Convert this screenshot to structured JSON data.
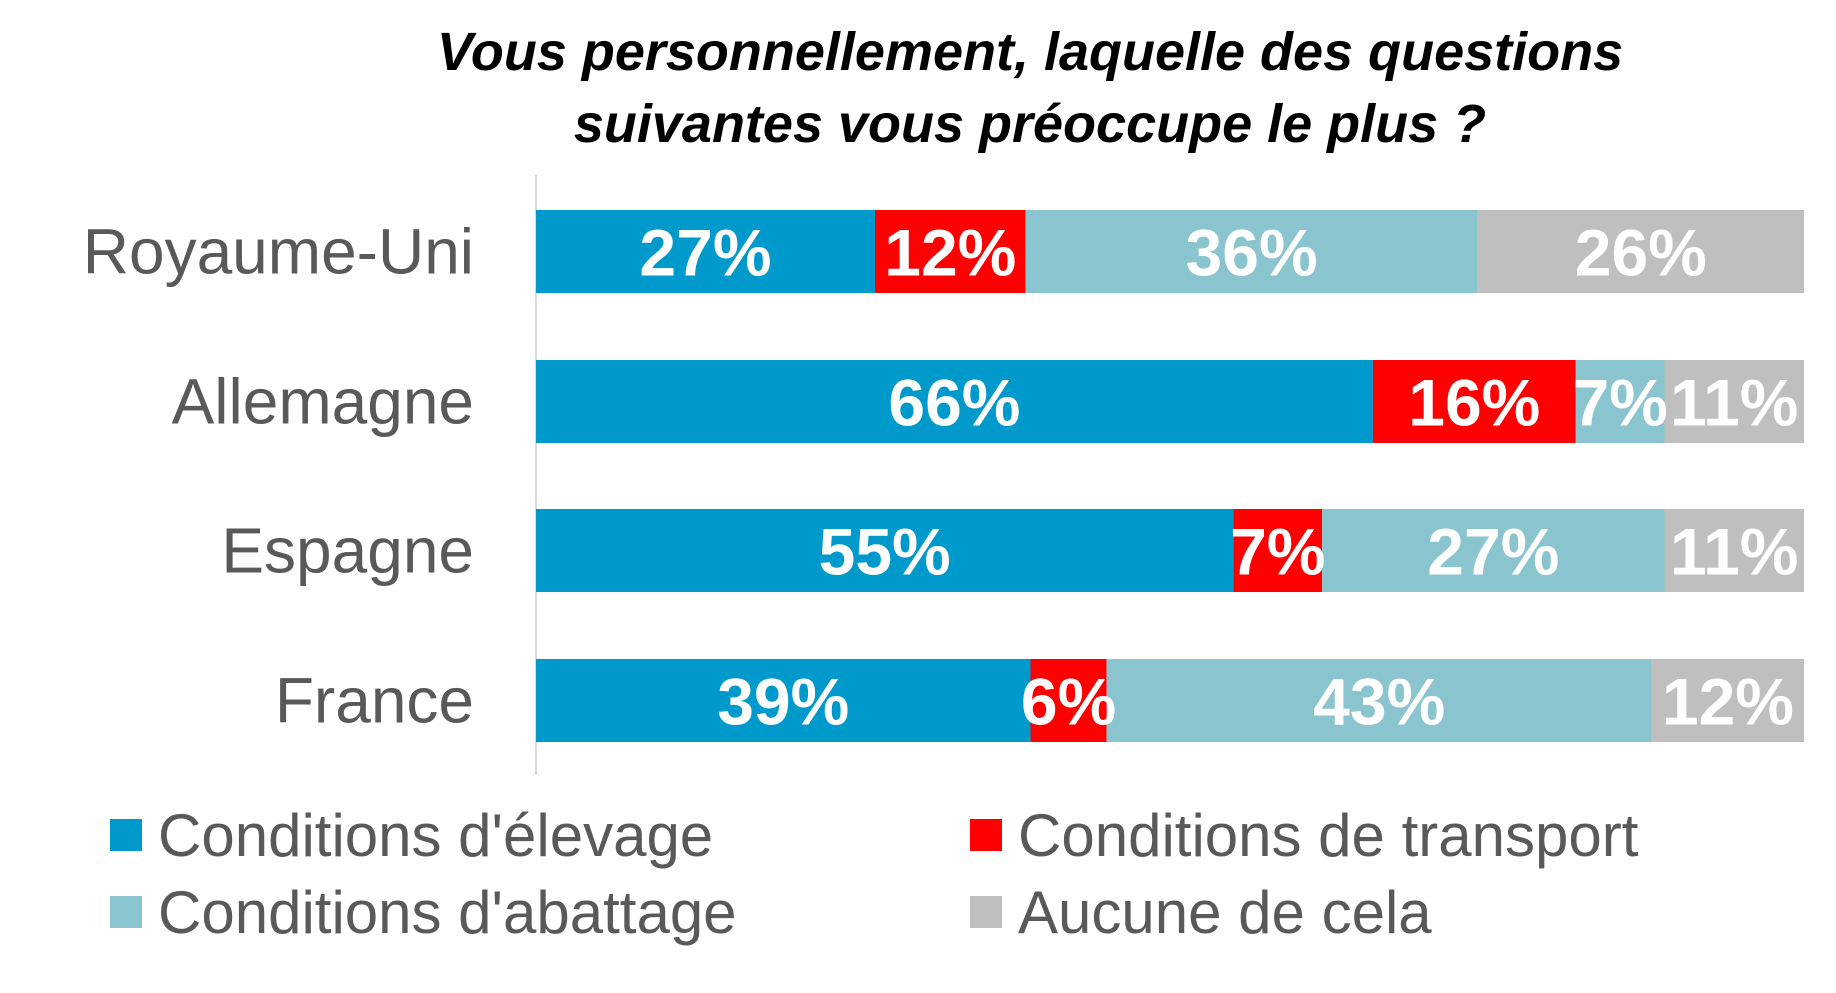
{
  "chart_data": {
    "type": "bar",
    "orientation": "horizontal",
    "stacked": true,
    "title": "Vous personnellement, laquelle des questions suivantes vous préoccupe le plus ?",
    "title_lines": [
      "Vous personnellement, laquelle des questions",
      "suivantes vous préoccupe le plus ?"
    ],
    "categories": [
      "Royaume-Uni",
      "Allemagne",
      "Espagne",
      "France"
    ],
    "series": [
      {
        "name": "Conditions d'élevage",
        "color": "#0099cc",
        "values": [
          27,
          66,
          55,
          39
        ]
      },
      {
        "name": "Conditions de transport",
        "color": "#ff0000",
        "values": [
          12,
          16,
          7,
          6
        ]
      },
      {
        "name": "Conditions d'abattage",
        "color": "#8ac5cf",
        "values": [
          36,
          7,
          27,
          43
        ]
      },
      {
        "name": "Aucune de cela",
        "color": "#bfbfbf",
        "values": [
          26,
          11,
          11,
          12
        ]
      }
    ],
    "value_suffix": "%",
    "xlabel": "",
    "ylabel": "",
    "grid": false,
    "legend_position": "bottom"
  }
}
